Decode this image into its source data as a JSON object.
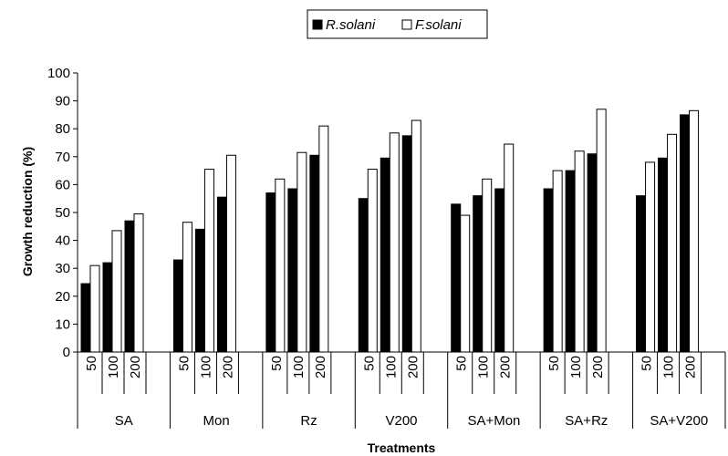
{
  "chart_data": {
    "type": "bar",
    "xlabel": "Treatments",
    "ylabel": "Growth reduction (%)",
    "ylim": [
      0,
      100
    ],
    "yticks": [
      0,
      10,
      20,
      30,
      40,
      50,
      60,
      70,
      80,
      90,
      100
    ],
    "grid": false,
    "legend_position": "top-center",
    "groups": [
      {
        "name": "SA",
        "subcategories": [
          "50",
          "100",
          "200"
        ]
      },
      {
        "name": "Mon",
        "subcategories": [
          "50",
          "100",
          "200"
        ]
      },
      {
        "name": "Rz",
        "subcategories": [
          "50",
          "100",
          "200"
        ]
      },
      {
        "name": "V200",
        "subcategories": [
          "50",
          "100",
          "200"
        ]
      },
      {
        "name": "SA+Mon",
        "subcategories": [
          "50",
          "100",
          "200"
        ]
      },
      {
        "name": "SA+Rz",
        "subcategories": [
          "50",
          "100",
          "200"
        ]
      },
      {
        "name": "SA+V200",
        "subcategories": [
          "50",
          "100",
          "200"
        ]
      }
    ],
    "series": [
      {
        "name": "R.solani",
        "color": "#000000",
        "values": [
          24.5,
          32,
          47,
          33,
          44,
          55.5,
          57,
          58.5,
          70.5,
          55,
          69.5,
          77.5,
          53,
          56,
          58.5,
          58.5,
          65,
          71,
          56,
          69.5,
          85
        ]
      },
      {
        "name": "F.solani",
        "color": "#ffffff",
        "values": [
          31,
          43.5,
          49.5,
          46.5,
          65.5,
          70.5,
          62,
          71.5,
          81,
          65.5,
          78.5,
          83,
          49,
          62,
          74.5,
          65,
          72,
          87,
          68,
          78,
          86.5
        ]
      }
    ]
  }
}
